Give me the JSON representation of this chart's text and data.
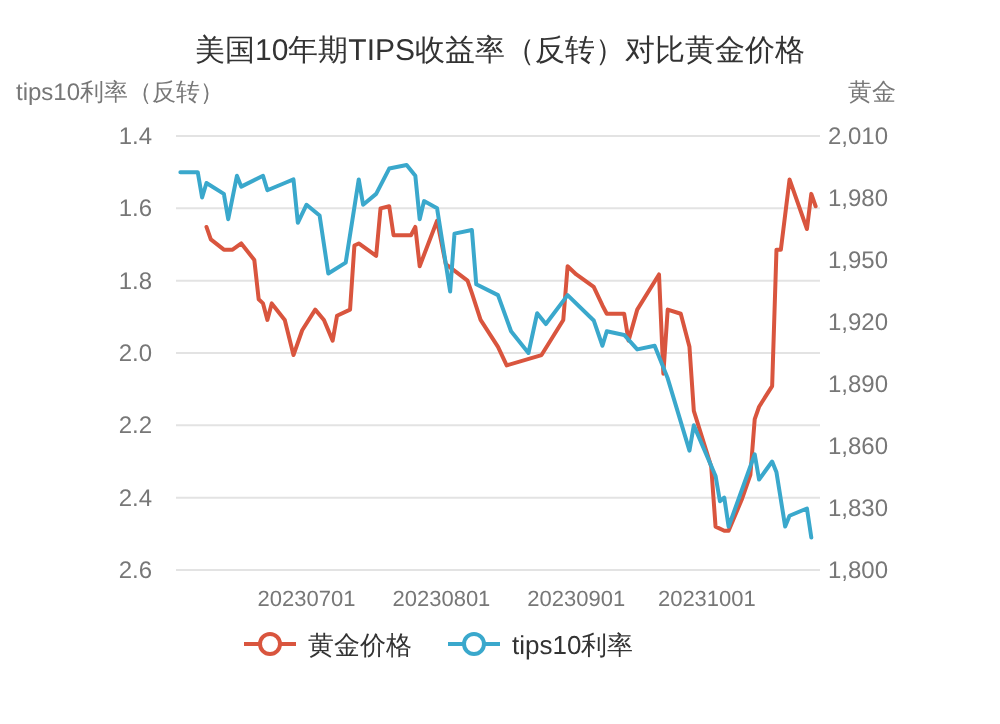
{
  "chart_data": {
    "type": "line",
    "title": "美国10年期TIPS收益率（反转）对比黄金价格",
    "ylabel": "tips10利率（反转）",
    "y2label": "黄金",
    "xlim": [
      "2023-06-01",
      "2023-10-27"
    ],
    "xticks": [
      {
        "value": "2023-07-01",
        "label": "20230701"
      },
      {
        "value": "2023-08-01",
        "label": "20230801"
      },
      {
        "value": "2023-09-01",
        "label": "20230901"
      },
      {
        "value": "2023-10-01",
        "label": "20231001"
      }
    ],
    "ylim": [
      2.6,
      1.4
    ],
    "yticks": [
      {
        "value": 1.4,
        "label": "1.4"
      },
      {
        "value": 1.6,
        "label": "1.6"
      },
      {
        "value": 1.8,
        "label": "1.8"
      },
      {
        "value": 2.0,
        "label": "2.0"
      },
      {
        "value": 2.2,
        "label": "2.2"
      },
      {
        "value": 2.4,
        "label": "2.4"
      },
      {
        "value": 2.6,
        "label": "2.6"
      }
    ],
    "y2lim": [
      1800,
      2010
    ],
    "y2ticks": [
      {
        "value": 1800,
        "label": "1,800"
      },
      {
        "value": 1830,
        "label": "1,830"
      },
      {
        "value": 1860,
        "label": "1,860"
      },
      {
        "value": 1890,
        "label": "1,890"
      },
      {
        "value": 1920,
        "label": "1,920"
      },
      {
        "value": 1950,
        "label": "1,950"
      },
      {
        "value": 1980,
        "label": "1,980"
      },
      {
        "value": 2010,
        "label": "2,010"
      }
    ],
    "grid": "y",
    "legend": "bottom",
    "line_style": "solid",
    "series": [
      {
        "name": "黄金价格",
        "color": "#d9553e",
        "axis": "y2",
        "x": [
          "2023-06-08",
          "2023-06-09",
          "2023-06-12",
          "2023-06-14",
          "2023-06-16",
          "2023-06-19",
          "2023-06-20",
          "2023-06-21",
          "2023-06-22",
          "2023-06-23",
          "2023-06-26",
          "2023-06-28",
          "2023-06-30",
          "2023-07-03",
          "2023-07-05",
          "2023-07-07",
          "2023-07-08",
          "2023-07-11",
          "2023-07-12",
          "2023-07-13",
          "2023-07-17",
          "2023-07-18",
          "2023-07-20",
          "2023-07-21",
          "2023-07-25",
          "2023-07-26",
          "2023-07-27",
          "2023-07-31",
          "2023-08-02",
          "2023-08-07",
          "2023-08-08",
          "2023-08-10",
          "2023-08-14",
          "2023-08-16",
          "2023-08-24",
          "2023-08-29",
          "2023-08-30",
          "2023-09-01",
          "2023-09-05",
          "2023-09-07",
          "2023-09-08",
          "2023-09-12",
          "2023-09-13",
          "2023-09-15",
          "2023-09-20",
          "2023-09-21",
          "2023-09-22",
          "2023-09-25",
          "2023-09-27",
          "2023-09-28",
          "2023-10-02",
          "2023-10-03",
          "2023-10-05",
          "2023-10-06",
          "2023-10-09",
          "2023-10-11",
          "2023-10-12",
          "2023-10-13",
          "2023-10-16",
          "2023-10-17",
          "2023-10-18",
          "2023-10-20",
          "2023-10-24",
          "2023-10-25",
          "2023-10-26"
        ],
        "values": [
          1966,
          1960,
          1955,
          1955,
          1958,
          1950,
          1931,
          1929,
          1921,
          1929,
          1921,
          1904,
          1916,
          1926,
          1921,
          1911,
          1923,
          1926,
          1957,
          1958,
          1952,
          1975,
          1976,
          1962,
          1962,
          1966,
          1947,
          1969,
          1948,
          1940,
          1934,
          1921,
          1908,
          1899,
          1904,
          1921,
          1947,
          1943,
          1937,
          1928,
          1924,
          1924,
          1911,
          1926,
          1943,
          1895,
          1926,
          1924,
          1908,
          1877,
          1850,
          1821,
          1819,
          1819,
          1834,
          1846,
          1873,
          1879,
          1889,
          1955,
          1955,
          1989,
          1965,
          1982,
          1976
        ]
      },
      {
        "name": "tips10利率",
        "color": "#3aa8cc",
        "x": [
          "2023-06-02",
          "2023-06-06",
          "2023-06-07",
          "2023-06-08",
          "2023-06-12",
          "2023-06-13",
          "2023-06-15",
          "2023-06-16",
          "2023-06-21",
          "2023-06-22",
          "2023-06-26",
          "2023-06-28",
          "2023-06-29",
          "2023-07-01",
          "2023-07-04",
          "2023-07-06",
          "2023-07-10",
          "2023-07-13",
          "2023-07-14",
          "2023-07-17",
          "2023-07-20",
          "2023-07-24",
          "2023-07-26",
          "2023-07-27",
          "2023-07-28",
          "2023-07-31",
          "2023-08-03",
          "2023-08-04",
          "2023-08-08",
          "2023-08-09",
          "2023-08-14",
          "2023-08-17",
          "2023-08-21",
          "2023-08-23",
          "2023-08-25",
          "2023-08-30",
          "2023-09-05",
          "2023-09-07",
          "2023-09-08",
          "2023-09-12",
          "2023-09-15",
          "2023-09-19",
          "2023-09-22",
          "2023-09-27",
          "2023-09-28",
          "2023-10-03",
          "2023-10-04",
          "2023-10-05",
          "2023-10-06",
          "2023-10-12",
          "2023-10-13",
          "2023-10-16",
          "2023-10-17",
          "2023-10-19",
          "2023-10-20",
          "2023-10-24",
          "2023-10-25"
        ],
        "values": [
          1.5,
          1.5,
          1.57,
          1.53,
          1.56,
          1.63,
          1.51,
          1.54,
          1.51,
          1.55,
          1.53,
          1.52,
          1.64,
          1.59,
          1.62,
          1.78,
          1.75,
          1.52,
          1.59,
          1.56,
          1.49,
          1.48,
          1.51,
          1.63,
          1.58,
          1.6,
          1.83,
          1.67,
          1.66,
          1.81,
          1.84,
          1.94,
          2.0,
          1.89,
          1.92,
          1.84,
          1.91,
          1.98,
          1.94,
          1.95,
          1.99,
          1.98,
          2.07,
          2.27,
          2.2,
          2.34,
          2.41,
          2.4,
          2.48,
          2.28,
          2.35,
          2.3,
          2.33,
          2.48,
          2.45,
          2.43,
          2.51
        ]
      }
    ]
  }
}
